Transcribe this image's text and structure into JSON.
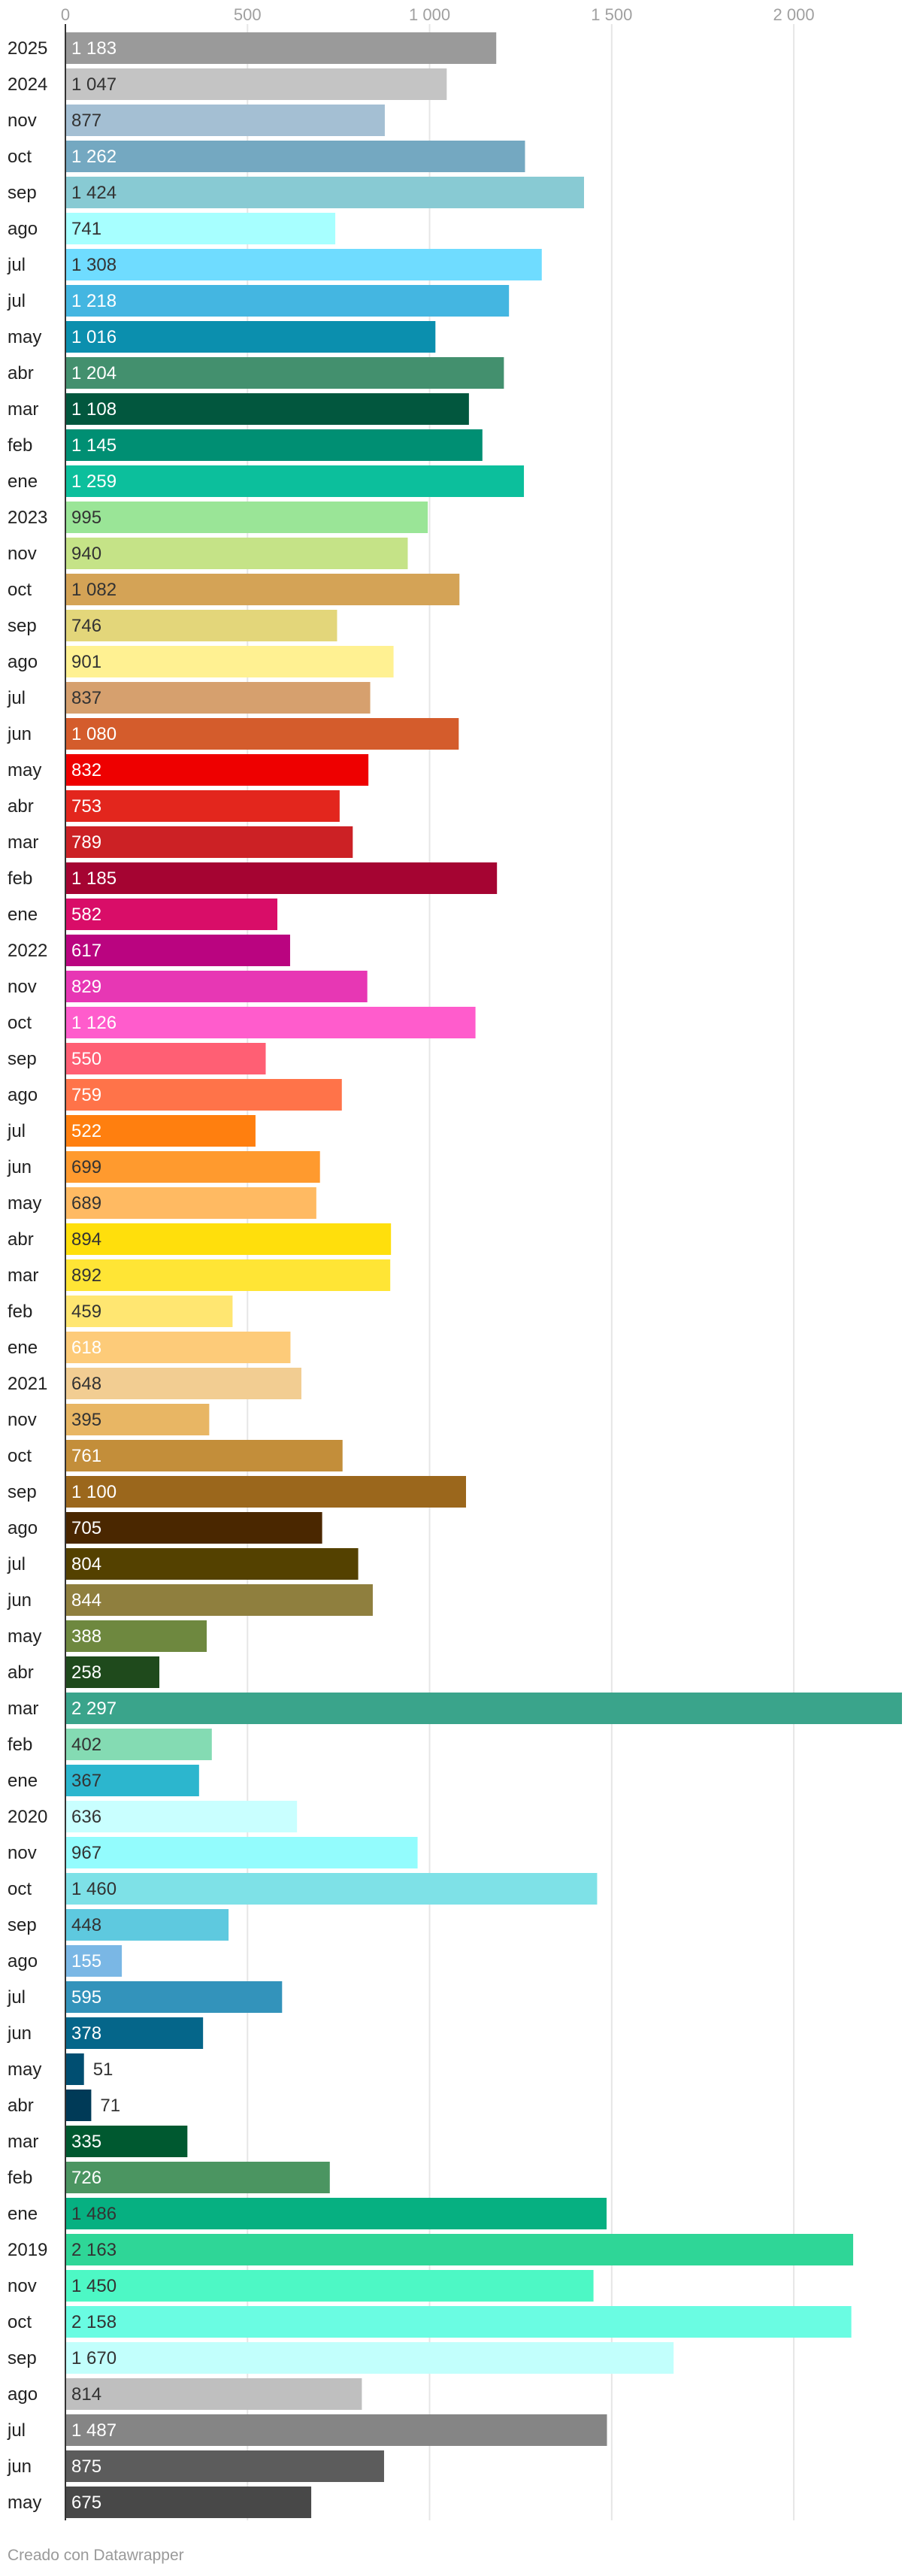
{
  "chart_data": {
    "type": "bar",
    "orientation": "horizontal",
    "title": "",
    "xlabel": "",
    "ylabel": "",
    "xlim": [
      0,
      2300
    ],
    "ticks": [
      {
        "value": 0,
        "label": "0"
      },
      {
        "value": 500,
        "label": "500"
      },
      {
        "value": 1000,
        "label": "1 000"
      },
      {
        "value": 1500,
        "label": "1 500"
      },
      {
        "value": 2000,
        "label": "2 000"
      }
    ],
    "grid": true,
    "categories": [
      "2025",
      "2024",
      "nov",
      "oct",
      "sep",
      "ago",
      "jul",
      "jul",
      "may",
      "abr",
      "mar",
      "feb",
      "ene",
      "2023",
      "nov",
      "oct",
      "sep",
      "ago",
      "jul",
      "jun",
      "may",
      "abr",
      "mar",
      "feb",
      "ene",
      "2022",
      "nov",
      "oct",
      "sep",
      "ago",
      "jul",
      "jun",
      "may",
      "abr",
      "mar",
      "feb",
      "ene",
      "2021",
      "nov",
      "oct",
      "sep",
      "ago",
      "jul",
      "jun",
      "may",
      "abr",
      "mar",
      "feb",
      "ene",
      "2020",
      "nov",
      "oct",
      "sep",
      "ago",
      "jul",
      "jun",
      "may",
      "abr",
      "mar",
      "feb",
      "ene",
      "2019",
      "nov",
      "oct",
      "sep",
      "ago",
      "jul",
      "jun",
      "may"
    ],
    "values": [
      1183,
      1047,
      877,
      1262,
      1424,
      741,
      1308,
      1218,
      1016,
      1204,
      1108,
      1145,
      1259,
      995,
      940,
      1082,
      746,
      901,
      837,
      1080,
      832,
      753,
      789,
      1185,
      582,
      617,
      829,
      1126,
      550,
      759,
      522,
      699,
      689,
      894,
      892,
      459,
      618,
      648,
      395,
      761,
      1100,
      705,
      804,
      844,
      388,
      258,
      2297,
      402,
      367,
      636,
      967,
      1460,
      448,
      155,
      595,
      378,
      51,
      71,
      335,
      726,
      1486,
      2163,
      1450,
      2158,
      1670,
      814,
      1487,
      875,
      675
    ],
    "value_labels": [
      "1 183",
      "1 047",
      "877",
      "1 262",
      "1 424",
      "741",
      "1 308",
      "1 218",
      "1 016",
      "1 204",
      "1 108",
      "1 145",
      "1 259",
      "995",
      "940",
      "1 082",
      "746",
      "901",
      "837",
      "1 080",
      "832",
      "753",
      "789",
      "1 185",
      "582",
      "617",
      "829",
      "1 126",
      "550",
      "759",
      "522",
      "699",
      "689",
      "894",
      "892",
      "459",
      "618",
      "648",
      "395",
      "761",
      "1 100",
      "705",
      "804",
      "844",
      "388",
      "258",
      "2 297",
      "402",
      "367",
      "636",
      "967",
      "1 460",
      "448",
      "155",
      "595",
      "378",
      "51",
      "71",
      "335",
      "726",
      "1 486",
      "2 163",
      "1 450",
      "2 158",
      "1 670",
      "814",
      "1 487",
      "875",
      "675"
    ],
    "colors": [
      "#9a9a9a",
      "#c4c4c4",
      "#a4bfd3",
      "#74a8c1",
      "#88cad3",
      "#a7ffff",
      "#6fdcff",
      "#44b6e1",
      "#0b8fae",
      "#43906e",
      "#02573e",
      "#008f73",
      "#0cbf9c",
      "#9ae597",
      "#c5e387",
      "#d4a356",
      "#e3d67a",
      "#fff192",
      "#d6a06e",
      "#d45c2c",
      "#ee0000",
      "#e3261d",
      "#cc2125",
      "#a50432",
      "#d90d68",
      "#ba0480",
      "#e737b4",
      "#ff5ccc",
      "#ff5f74",
      "#ff7349",
      "#ff7f0f",
      "#ff9a2e",
      "#ffba62",
      "#ffdf0c",
      "#ffe535",
      "#ffe671",
      "#fdcb79",
      "#f2cd92",
      "#e8b664",
      "#c38e3a",
      "#9b671c",
      "#4a2700",
      "#544100",
      "#8f7f3e",
      "#6e883f",
      "#1f4a1c",
      "#3aa48b",
      "#84dbb3",
      "#2cb6ce",
      "#c9ffff",
      "#93fcfd",
      "#7ee1e7",
      "#5ec9df",
      "#7ab7e5",
      "#3393bb",
      "#05668a",
      "#004e71",
      "#003a57",
      "#005930",
      "#4b9561",
      "#06b081",
      "#2fd697",
      "#4df8c5",
      "#6afce2",
      "#c2fffc",
      "#bfbfbf",
      "#858585",
      "#5c5c5c",
      "#484848"
    ],
    "label_colors": [
      "light",
      "dark",
      "dark",
      "light",
      "dark",
      "dark",
      "dark",
      "light",
      "light",
      "light",
      "light",
      "light",
      "light",
      "dark",
      "dark",
      "dark",
      "dark",
      "dark",
      "dark",
      "light",
      "light",
      "light",
      "light",
      "light",
      "light",
      "light",
      "light",
      "light",
      "light",
      "light",
      "light",
      "dark",
      "dark",
      "dark",
      "dark",
      "dark",
      "light",
      "dark",
      "dark",
      "light",
      "light",
      "light",
      "light",
      "light",
      "light",
      "light",
      "light",
      "dark",
      "dark",
      "dark",
      "dark",
      "dark",
      "dark",
      "light",
      "light",
      "light",
      "outside",
      "outside",
      "light",
      "light",
      "dark",
      "dark",
      "dark",
      "dark",
      "dark",
      "dark",
      "light",
      "light",
      "light"
    ],
    "credit": "Creado con Datawrapper"
  }
}
